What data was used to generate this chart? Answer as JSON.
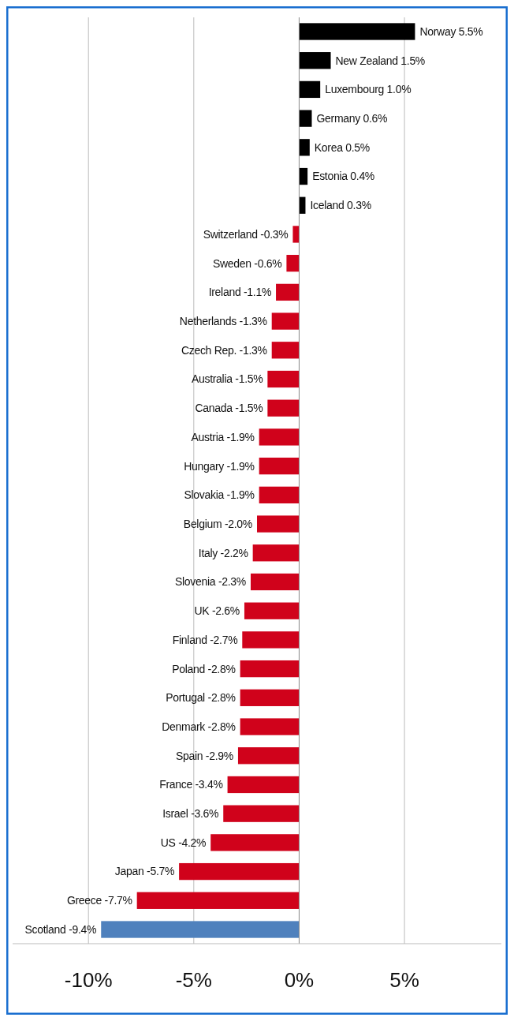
{
  "chart_data": {
    "type": "bar",
    "orientation": "horizontal",
    "categories": [
      "Norway",
      "New Zealand",
      "Luxembourg",
      "Germany",
      "Korea",
      "Estonia",
      "Iceland",
      "Switzerland",
      "Sweden",
      "Ireland",
      "Netherlands",
      "Czech Rep.",
      "Australia",
      "Canada",
      "Austria",
      "Hungary",
      "Slovakia",
      "Belgium",
      "Italy",
      "Slovenia",
      "UK",
      "Finland",
      "Poland",
      "Portugal",
      "Denmark",
      "Spain",
      "France",
      "Israel",
      "US",
      "Japan",
      "Greece",
      "Scotland"
    ],
    "values": [
      5.5,
      1.5,
      1.0,
      0.6,
      0.5,
      0.4,
      0.3,
      -0.3,
      -0.6,
      -1.1,
      -1.3,
      -1.3,
      -1.5,
      -1.5,
      -1.9,
      -1.9,
      -1.9,
      -2.0,
      -2.2,
      -2.3,
      -2.6,
      -2.7,
      -2.8,
      -2.8,
      -2.8,
      -2.9,
      -3.4,
      -3.6,
      -4.2,
      -5.7,
      -7.7,
      -9.4
    ],
    "value_labels": [
      "5.5%",
      "1.5%",
      "1.0%",
      "0.6%",
      "0.5%",
      "0.4%",
      "0.3%",
      "-0.3%",
      "-0.6%",
      "-1.1%",
      "-1.3%",
      "-1.3%",
      "-1.5%",
      "-1.5%",
      "-1.9%",
      "-1.9%",
      "-1.9%",
      "-2.0%",
      "-2.2%",
      "-2.3%",
      "-2.6%",
      "-2.7%",
      "-2.8%",
      "-2.8%",
      "-2.8%",
      "-2.9%",
      "-3.4%",
      "-3.6%",
      "-4.2%",
      "-5.7%",
      "-7.7%",
      "-9.4%"
    ],
    "colors": [
      "#000000",
      "#000000",
      "#000000",
      "#000000",
      "#000000",
      "#000000",
      "#000000",
      "#d0021b",
      "#d0021b",
      "#d0021b",
      "#d0021b",
      "#d0021b",
      "#d0021b",
      "#d0021b",
      "#d0021b",
      "#d0021b",
      "#d0021b",
      "#d0021b",
      "#d0021b",
      "#d0021b",
      "#d0021b",
      "#d0021b",
      "#d0021b",
      "#d0021b",
      "#d0021b",
      "#d0021b",
      "#d0021b",
      "#d0021b",
      "#d0021b",
      "#d0021b",
      "#d0021b",
      "#4f81bd"
    ],
    "xlim": [
      -13.6,
      9.6
    ],
    "xticks": [
      {
        "value": -10,
        "label": "-10%"
      },
      {
        "value": -5,
        "label": "-5%"
      },
      {
        "value": 0,
        "label": "0%"
      },
      {
        "value": 5,
        "label": "5%"
      }
    ],
    "grid": "x"
  }
}
